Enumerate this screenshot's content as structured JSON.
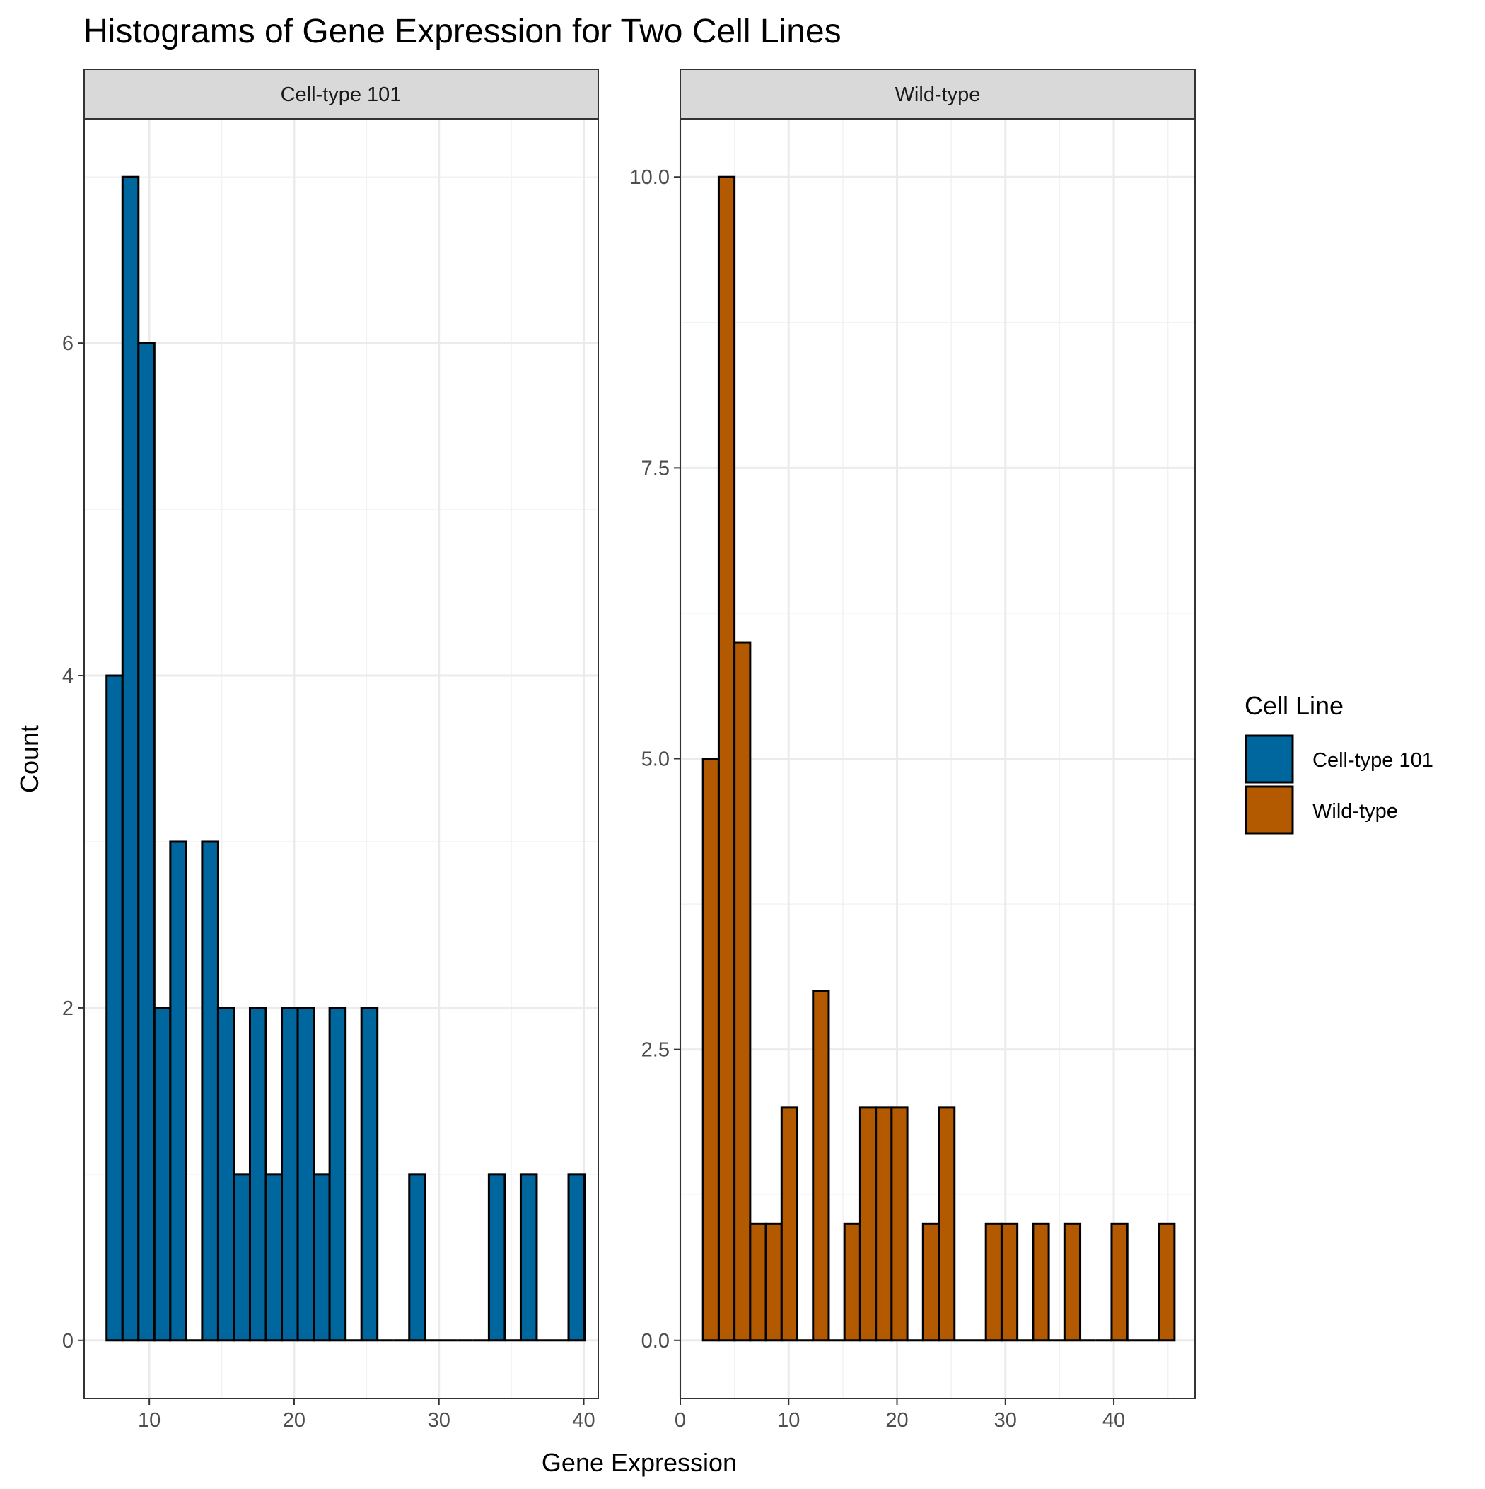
{
  "chart_data": {
    "type": "bar",
    "title": "Histograms of Gene Expression for Two Cell Lines",
    "xlabel": "Gene Expression",
    "ylabel": "Count",
    "grid": true,
    "legend": {
      "title": "Cell Line",
      "position": "right",
      "entries": [
        {
          "label": "Cell-type 101",
          "color": "#00669e"
        },
        {
          "label": "Wild-type",
          "color": "#b35900"
        }
      ]
    },
    "panels": [
      {
        "strip_label": "Cell-type 101",
        "color": "#00669e",
        "xlim": [
          5.5,
          41
        ],
        "ylim": [
          -0.35,
          7.35
        ],
        "x_ticks": [
          10,
          20,
          30,
          40
        ],
        "x_tick_labels": [
          "10",
          "20",
          "30",
          "40"
        ],
        "y_ticks": [
          0,
          2,
          4,
          6
        ],
        "y_tick_labels": [
          "0",
          "2",
          "4",
          "6"
        ],
        "bin_start": 7.05,
        "bin_width": 1.1,
        "counts": [
          4,
          7,
          6,
          2,
          3,
          0,
          3,
          2,
          1,
          2,
          1,
          2,
          2,
          1,
          2,
          0,
          2,
          0,
          0,
          1,
          0,
          0,
          0,
          0,
          1,
          0,
          1,
          0,
          0,
          1
        ]
      },
      {
        "strip_label": "Wild-type",
        "color": "#b35900",
        "xlim": [
          0,
          47.5
        ],
        "ylim": [
          -0.5,
          10.5
        ],
        "x_ticks": [
          0,
          10,
          20,
          30,
          40
        ],
        "x_tick_labels": [
          "0",
          "10",
          "20",
          "30",
          "40"
        ],
        "y_ticks": [
          0,
          2.5,
          5,
          7.5,
          10
        ],
        "y_tick_labels": [
          "0.0",
          "2.5",
          "5.0",
          "7.5",
          "10.0"
        ],
        "bin_start": 2.1,
        "bin_width": 1.45,
        "counts": [
          5,
          10,
          6,
          1,
          1,
          2,
          0,
          3,
          0,
          1,
          2,
          2,
          2,
          0,
          1,
          2,
          0,
          0,
          1,
          1,
          0,
          1,
          0,
          1,
          0,
          0,
          1,
          0,
          0,
          1
        ]
      }
    ]
  }
}
